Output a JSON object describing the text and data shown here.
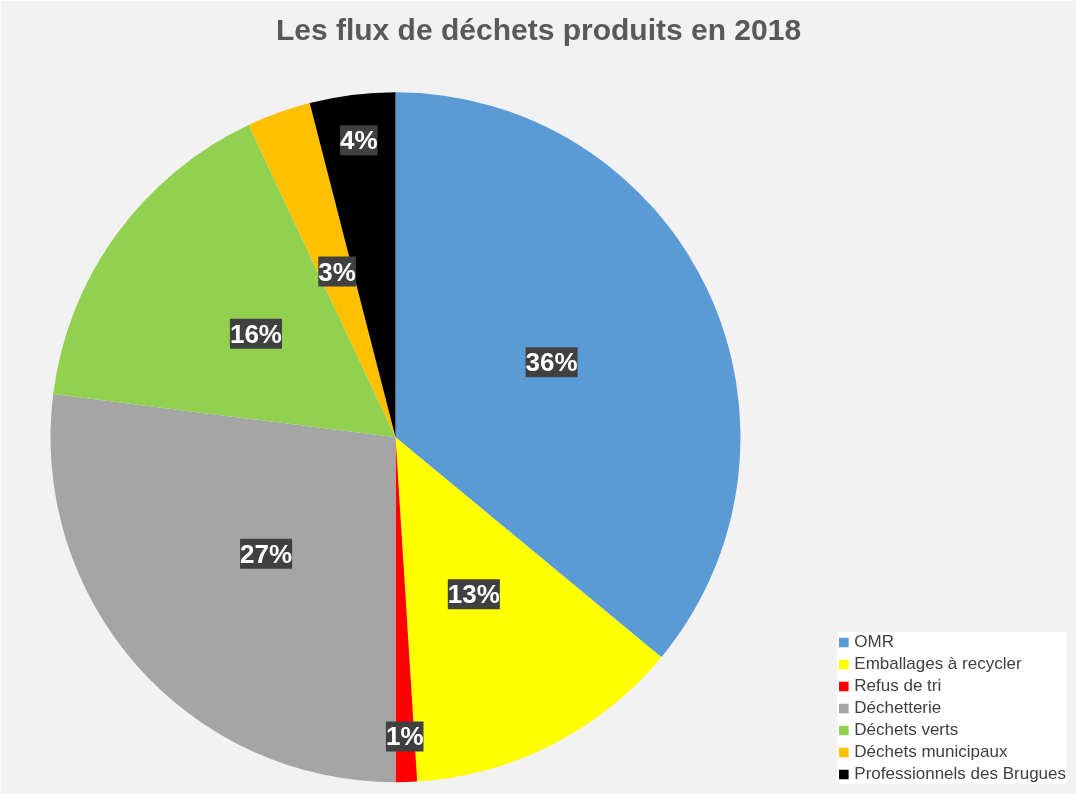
{
  "chart_data": {
    "type": "pie",
    "title": "Les flux de déchets produits en 2018",
    "categories": [
      "OMR",
      "Emballages à recycler",
      "Refus de tri",
      "Déchetterie",
      "Déchets verts",
      "Déchets municipaux",
      "Professionnels des Brugues"
    ],
    "values": [
      36,
      13,
      1,
      27,
      16,
      3,
      4
    ],
    "colors": [
      "#5b9bd5",
      "#ffff00",
      "#ff0000",
      "#a5a5a5",
      "#92d050",
      "#ffc000",
      "#000000"
    ],
    "value_labels": [
      "36%",
      "13%",
      "1%",
      "27%",
      "16%",
      "3%",
      "4%"
    ],
    "legend": "bottom right"
  }
}
